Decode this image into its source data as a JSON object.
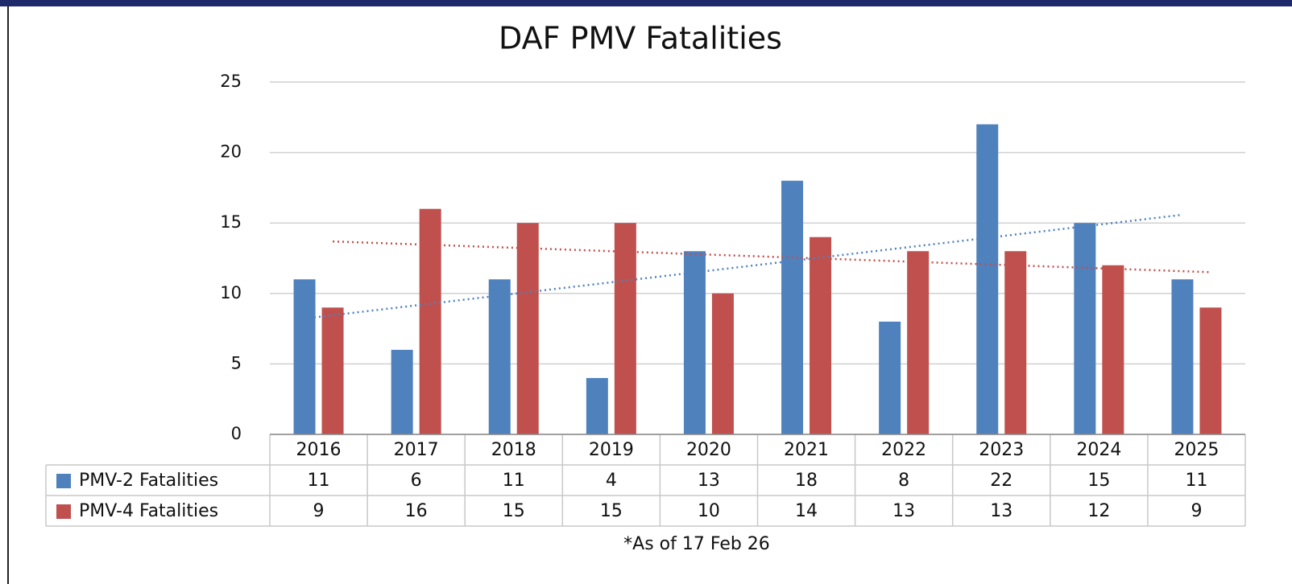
{
  "chart_data": {
    "type": "bar",
    "title": "DAF PMV Fatalities",
    "categories": [
      "2016",
      "2017",
      "2018",
      "2019",
      "2020",
      "2021",
      "2022",
      "2023",
      "2024",
      "2025"
    ],
    "series": [
      {
        "name": "PMV-2 Fatalities",
        "color": "#4f81bd",
        "values": [
          11,
          6,
          11,
          4,
          13,
          18,
          8,
          22,
          15,
          11
        ],
        "trendline": true
      },
      {
        "name": "PMV-4 Fatalities",
        "color": "#c0504d",
        "values": [
          9,
          16,
          15,
          15,
          10,
          14,
          13,
          13,
          12,
          9
        ],
        "trendline": true
      }
    ],
    "ylim": [
      0,
      25
    ],
    "yticks": [
      0,
      5,
      10,
      15,
      20,
      25
    ],
    "grid": true,
    "data_table": true,
    "footnote": "*As of 17 Feb 26"
  }
}
